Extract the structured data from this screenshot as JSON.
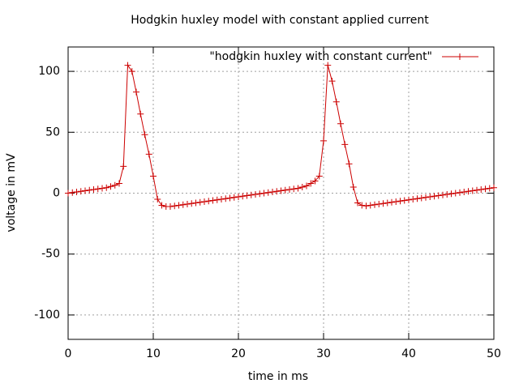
{
  "chart_data": {
    "type": "line",
    "title": "Hodgkin huxley model with constant applied current",
    "x_label": "time in ms",
    "y_label": "voltage in mV",
    "x": [
      0,
      0.5,
      1,
      1.5,
      2,
      2.5,
      3,
      3.5,
      4,
      4.5,
      5,
      5.5,
      6,
      6.5,
      7,
      7.5,
      8,
      8.5,
      9,
      9.5,
      10,
      10.5,
      11,
      11.5,
      12,
      12.5,
      13,
      13.5,
      14,
      14.5,
      15,
      15.5,
      16,
      16.5,
      17,
      17.5,
      18,
      18.5,
      19,
      19.5,
      20,
      20.5,
      21,
      21.5,
      22,
      22.5,
      23,
      23.5,
      24,
      24.5,
      25,
      25.5,
      26,
      26.5,
      27,
      27.5,
      28,
      28.5,
      29,
      29.5,
      30,
      30.5,
      31,
      31.5,
      32,
      32.5,
      33,
      33.5,
      34,
      34.5,
      35,
      35.5,
      36,
      36.5,
      37,
      37.5,
      38,
      38.5,
      39,
      39.5,
      40,
      40.5,
      41,
      41.5,
      42,
      42.5,
      43,
      43.5,
      44,
      44.5,
      45,
      45.5,
      46,
      46.5,
      47,
      47.5,
      48,
      48.5,
      49,
      49.5,
      50
    ],
    "series": [
      {
        "name": "\"hodgkin huxley with constant current\"",
        "color": "#cc0000",
        "values": [
          0,
          0.5,
          1,
          1.5,
          2,
          2.5,
          3,
          3.5,
          4,
          4.5,
          5.5,
          6.5,
          8,
          22,
          105,
          100,
          83,
          65,
          48,
          32,
          14,
          -5,
          -10,
          -11,
          -11,
          -10.5,
          -10,
          -9.5,
          -9,
          -8.5,
          -8,
          -7.5,
          -7,
          -6.5,
          -6,
          -5.5,
          -5,
          -4.5,
          -4,
          -3.5,
          -3,
          -2.5,
          -2,
          -1.5,
          -1,
          -0.5,
          0,
          0.5,
          1,
          1.5,
          2,
          2.5,
          3,
          3.5,
          4,
          5,
          6,
          8,
          10,
          14,
          43,
          105,
          92,
          75,
          57,
          40,
          24,
          5,
          -8,
          -10,
          -10.5,
          -10,
          -9.5,
          -9,
          -8.5,
          -8,
          -7.5,
          -7,
          -6.5,
          -6,
          -5.5,
          -5,
          -4.5,
          -4,
          -3.5,
          -3,
          -2.5,
          -2,
          -1.5,
          -1,
          -0.5,
          0,
          0.5,
          1,
          1.5,
          2,
          2.5,
          3,
          3.5,
          4,
          4.5
        ]
      }
    ],
    "xlim": [
      0,
      50
    ],
    "xticks": [
      0,
      10,
      20,
      30,
      40,
      50
    ],
    "ylim": [
      -120,
      120
    ],
    "yticks": [
      -100,
      -50,
      0,
      50,
      100
    ],
    "grid": true,
    "legend": "top-right"
  }
}
